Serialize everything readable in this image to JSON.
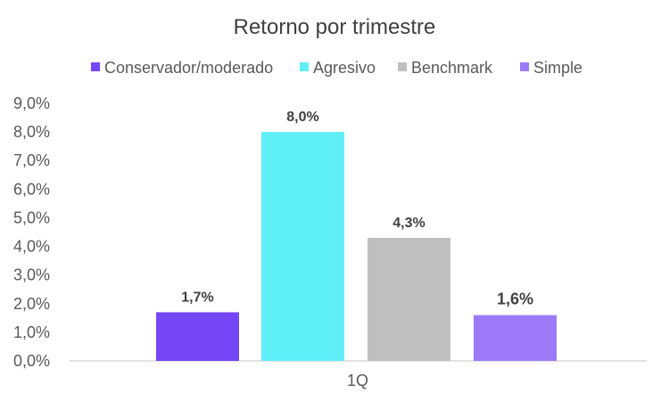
{
  "chart_data": {
    "type": "bar",
    "title": "Retorno por trimestre",
    "categories": [
      "1Q"
    ],
    "series": [
      {
        "name": "Conservador/moderado",
        "values": [
          1.7
        ],
        "color": "#7446F5",
        "label": "1,7%"
      },
      {
        "name": "Agresivo",
        "values": [
          8.0
        ],
        "color": "#5EEFF7",
        "label": "8,0%"
      },
      {
        "name": "Benchmark",
        "values": [
          4.3
        ],
        "color": "#BFBFBF",
        "label": "4,3%"
      },
      {
        "name": "Simple",
        "values": [
          1.6
        ],
        "color": "#9C7AF7",
        "label": "1,6%"
      }
    ],
    "y_ticks": [
      "0,0%",
      "1,0%",
      "2,0%",
      "3,0%",
      "4,0%",
      "5,0%",
      "6,0%",
      "7,0%",
      "8,0%",
      "9,0%"
    ],
    "ylim": [
      0,
      9
    ],
    "xlabel": "",
    "ylabel": "",
    "grid": false,
    "legend_position": "top"
  }
}
